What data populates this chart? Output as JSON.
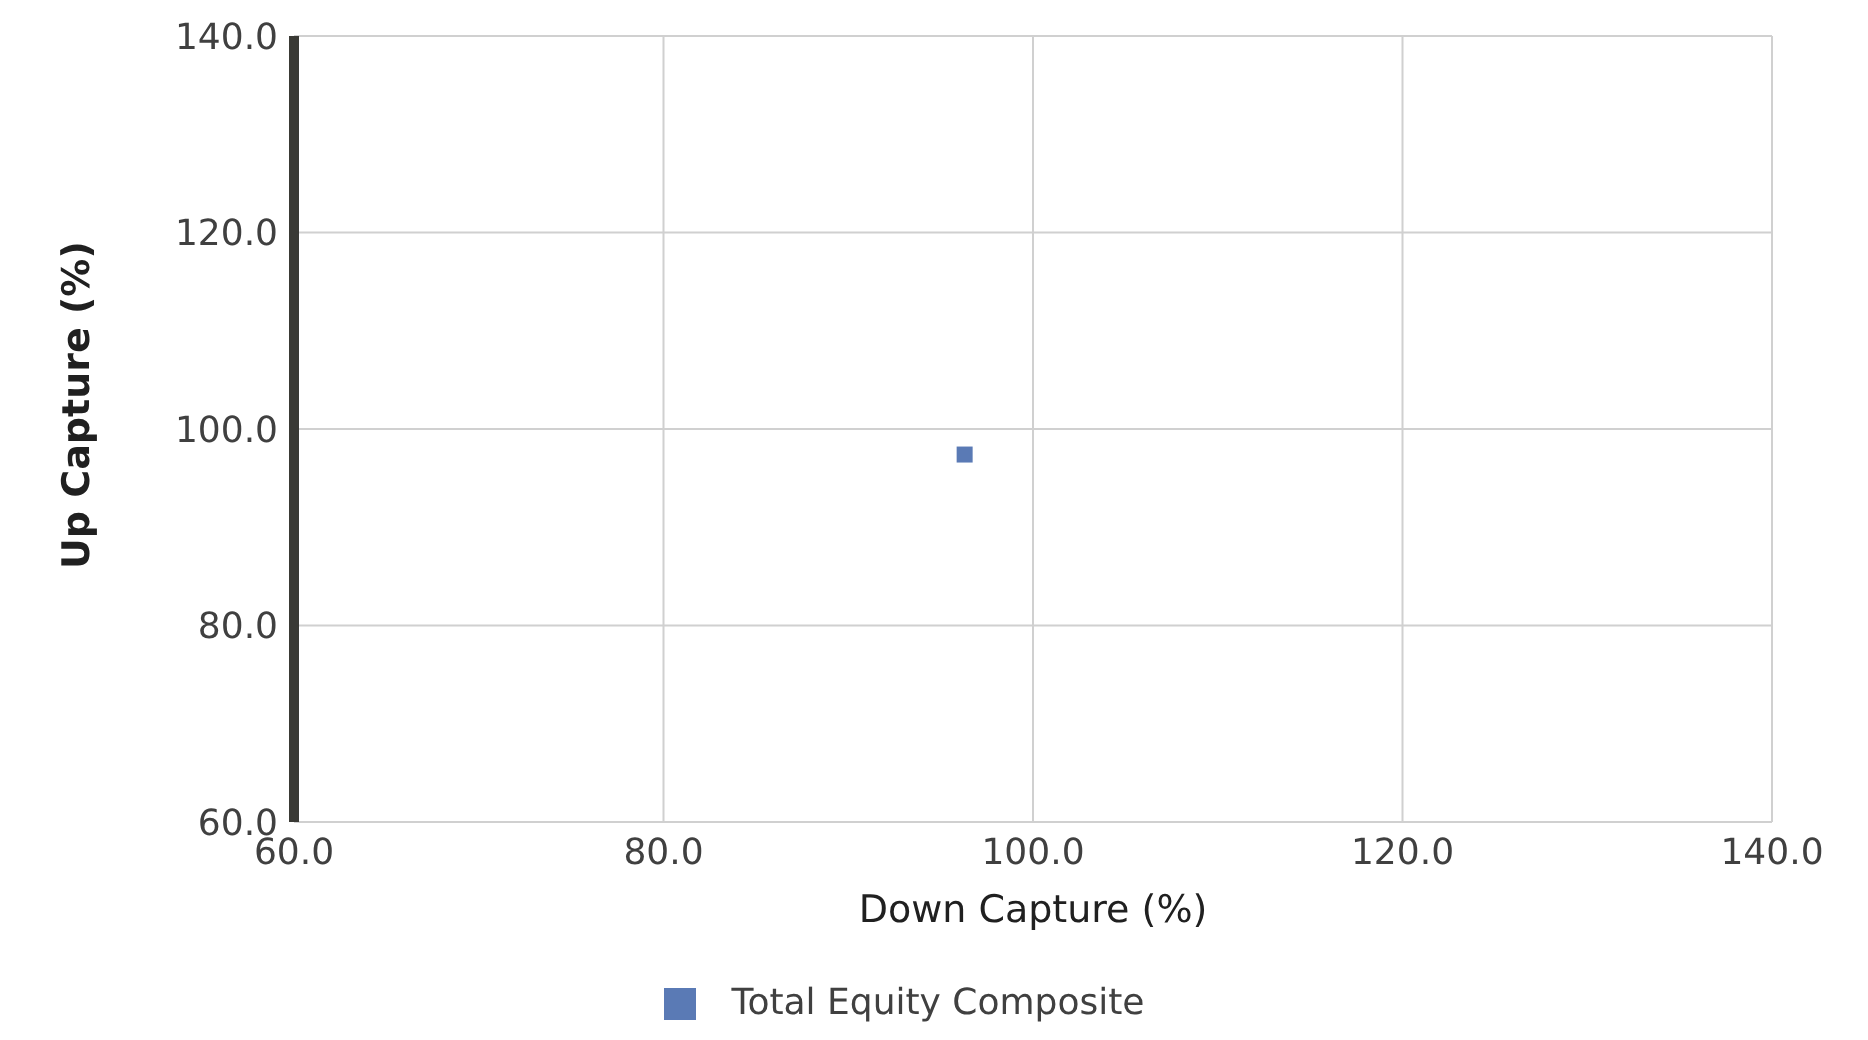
{
  "chart_data": {
    "type": "scatter",
    "xlabel": "Down Capture (%)",
    "ylabel": "Up Capture (%)",
    "xlim": [
      60,
      140
    ],
    "xticks": [
      {
        "value": 60,
        "label": "60.0"
      },
      {
        "value": 80,
        "label": "80.0"
      },
      {
        "value": 100,
        "label": "100.0"
      },
      {
        "value": 120,
        "label": "120.0"
      },
      {
        "value": 140,
        "label": "140.0"
      }
    ],
    "ylim": [
      60,
      140
    ],
    "yticks": [
      {
        "value": 60,
        "label": "60.0"
      },
      {
        "value": 80,
        "label": "80.0"
      },
      {
        "value": 100,
        "label": "100.0"
      },
      {
        "value": 120,
        "label": "120.0"
      },
      {
        "value": 140,
        "label": "140.0"
      }
    ],
    "series": [
      {
        "name": "Total Equity Composite",
        "color": "#5a7ab5",
        "x": [
          96.3
        ],
        "values": [
          97.4
        ]
      }
    ],
    "grid": true,
    "legend": "bottom",
    "marker": "square"
  }
}
